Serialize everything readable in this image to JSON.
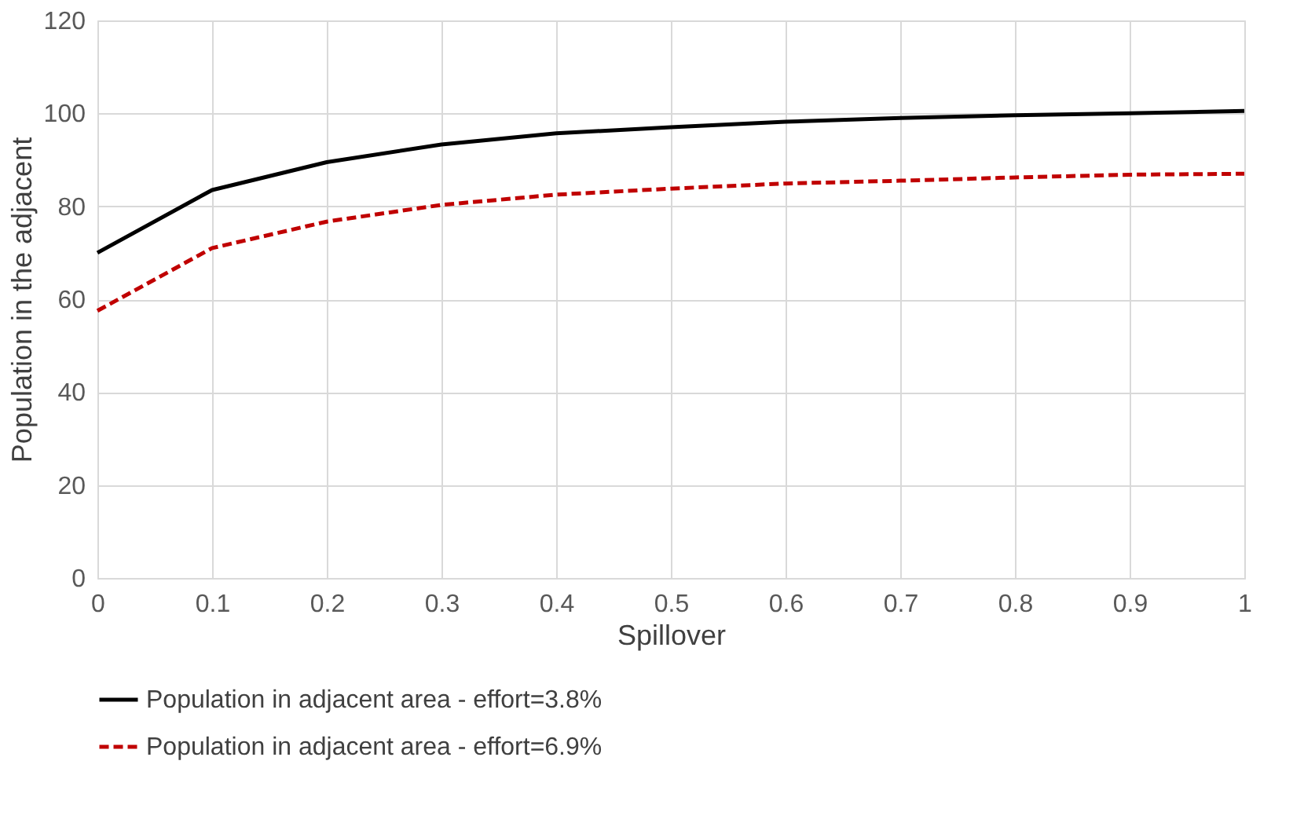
{
  "chart_data": {
    "type": "line",
    "xlabel": "Spillover",
    "ylabel": "Population in the adjacent",
    "x": [
      0,
      0.1,
      0.2,
      0.3,
      0.4,
      0.5,
      0.6,
      0.7,
      0.8,
      0.9,
      1
    ],
    "series": [
      {
        "name": "Population in adjacent area - effort=3.8%",
        "color": "#000000",
        "line_style": "solid",
        "values": [
          70,
          83.5,
          89.5,
          93.3,
          95.7,
          97,
          98.2,
          99,
          99.6,
          100,
          100.5
        ]
      },
      {
        "name": "Population in adjacent area - effort=6.9%",
        "color": "#c00000",
        "line_style": "dashed",
        "values": [
          57.5,
          71,
          76.7,
          80.3,
          82.5,
          83.8,
          84.9,
          85.5,
          86.2,
          86.8,
          87
        ]
      }
    ],
    "xlim": [
      0,
      1
    ],
    "xticks": [
      0,
      0.1,
      0.2,
      0.3,
      0.4,
      0.5,
      0.6,
      0.7,
      0.8,
      0.9,
      1
    ],
    "ylim": [
      0,
      120
    ],
    "yticks": [
      0,
      20,
      40,
      60,
      80,
      100,
      120
    ],
    "grid": true,
    "legend": "bottom",
    "marker": "none"
  }
}
